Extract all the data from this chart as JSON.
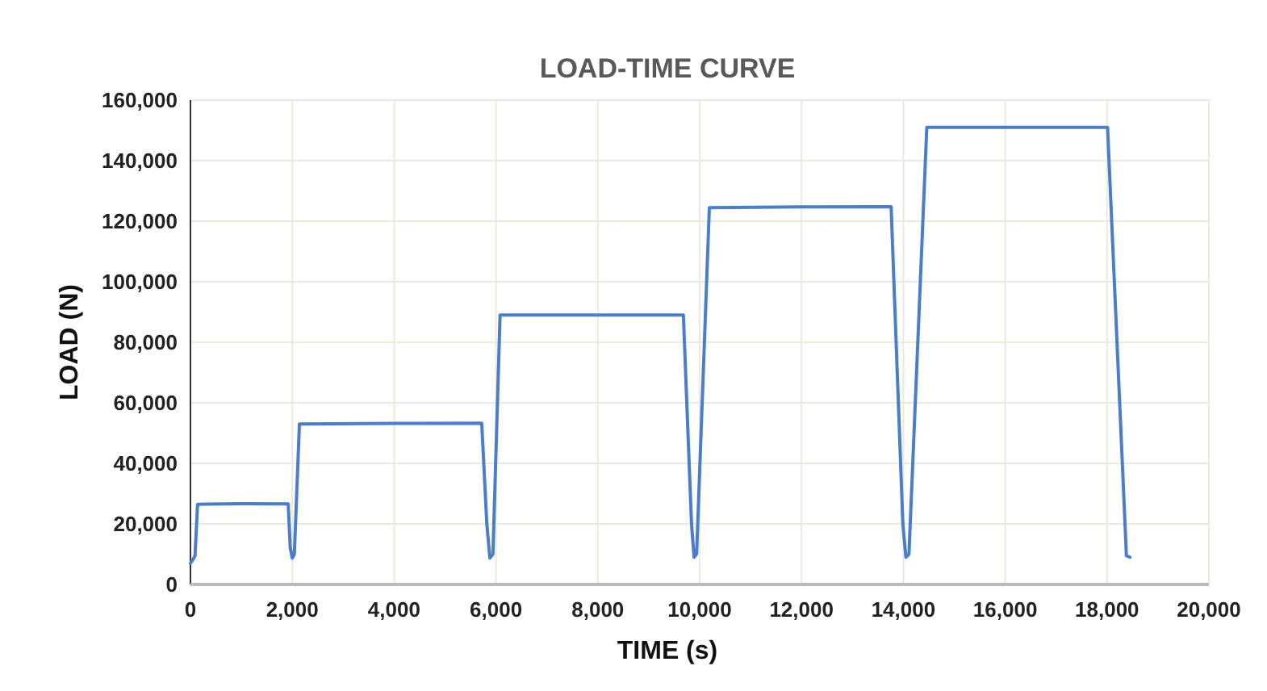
{
  "chart_data": {
    "type": "line",
    "title": "LOAD-TIME CURVE",
    "xlabel": "TIME (s)",
    "ylabel": "LOAD (N)",
    "xlim": [
      0,
      20000
    ],
    "xticks": [
      {
        "value": 0,
        "label": "0"
      },
      {
        "value": 2000,
        "label": "2,000"
      },
      {
        "value": 4000,
        "label": "4,000"
      },
      {
        "value": 6000,
        "label": "6,000"
      },
      {
        "value": 8000,
        "label": "8,000"
      },
      {
        "value": 10000,
        "label": "10,000"
      },
      {
        "value": 12000,
        "label": "12,000"
      },
      {
        "value": 14000,
        "label": "14,000"
      },
      {
        "value": 16000,
        "label": "16,000"
      },
      {
        "value": 18000,
        "label": "18,000"
      },
      {
        "value": 20000,
        "label": "20,000"
      }
    ],
    "ylim": [
      0,
      160000
    ],
    "yticks": [
      {
        "value": 0,
        "label": "0"
      },
      {
        "value": 20000,
        "label": "20,000"
      },
      {
        "value": 40000,
        "label": "40,000"
      },
      {
        "value": 60000,
        "label": "60,000"
      },
      {
        "value": 80000,
        "label": "80,000"
      },
      {
        "value": 100000,
        "label": "100,000"
      },
      {
        "value": 120000,
        "label": "120,000"
      },
      {
        "value": 140000,
        "label": "140,000"
      },
      {
        "value": 160000,
        "label": "160,000"
      }
    ],
    "grid": true,
    "marker": "none",
    "line_style": "solid",
    "series": [
      {
        "color": "#4a7ec8",
        "x": [
          0,
          60,
          90,
          140,
          1000,
          1920,
          1960,
          2000,
          2040,
          2140,
          4000,
          5720,
          5820,
          5880,
          5940,
          6080,
          8000,
          9680,
          9840,
          9890,
          9940,
          10190,
          12000,
          13760,
          13990,
          14050,
          14110,
          14460,
          16000,
          18010,
          18380,
          18450
        ],
        "values": [
          7000,
          8500,
          9500,
          26500,
          26700,
          26600,
          12000,
          8700,
          10000,
          53000,
          53200,
          53300,
          20000,
          8700,
          10000,
          89000,
          89000,
          89000,
          20000,
          9000,
          10000,
          124500,
          124700,
          124800,
          20000,
          9000,
          10000,
          151000,
          151000,
          151000,
          9500,
          9000
        ]
      }
    ]
  }
}
